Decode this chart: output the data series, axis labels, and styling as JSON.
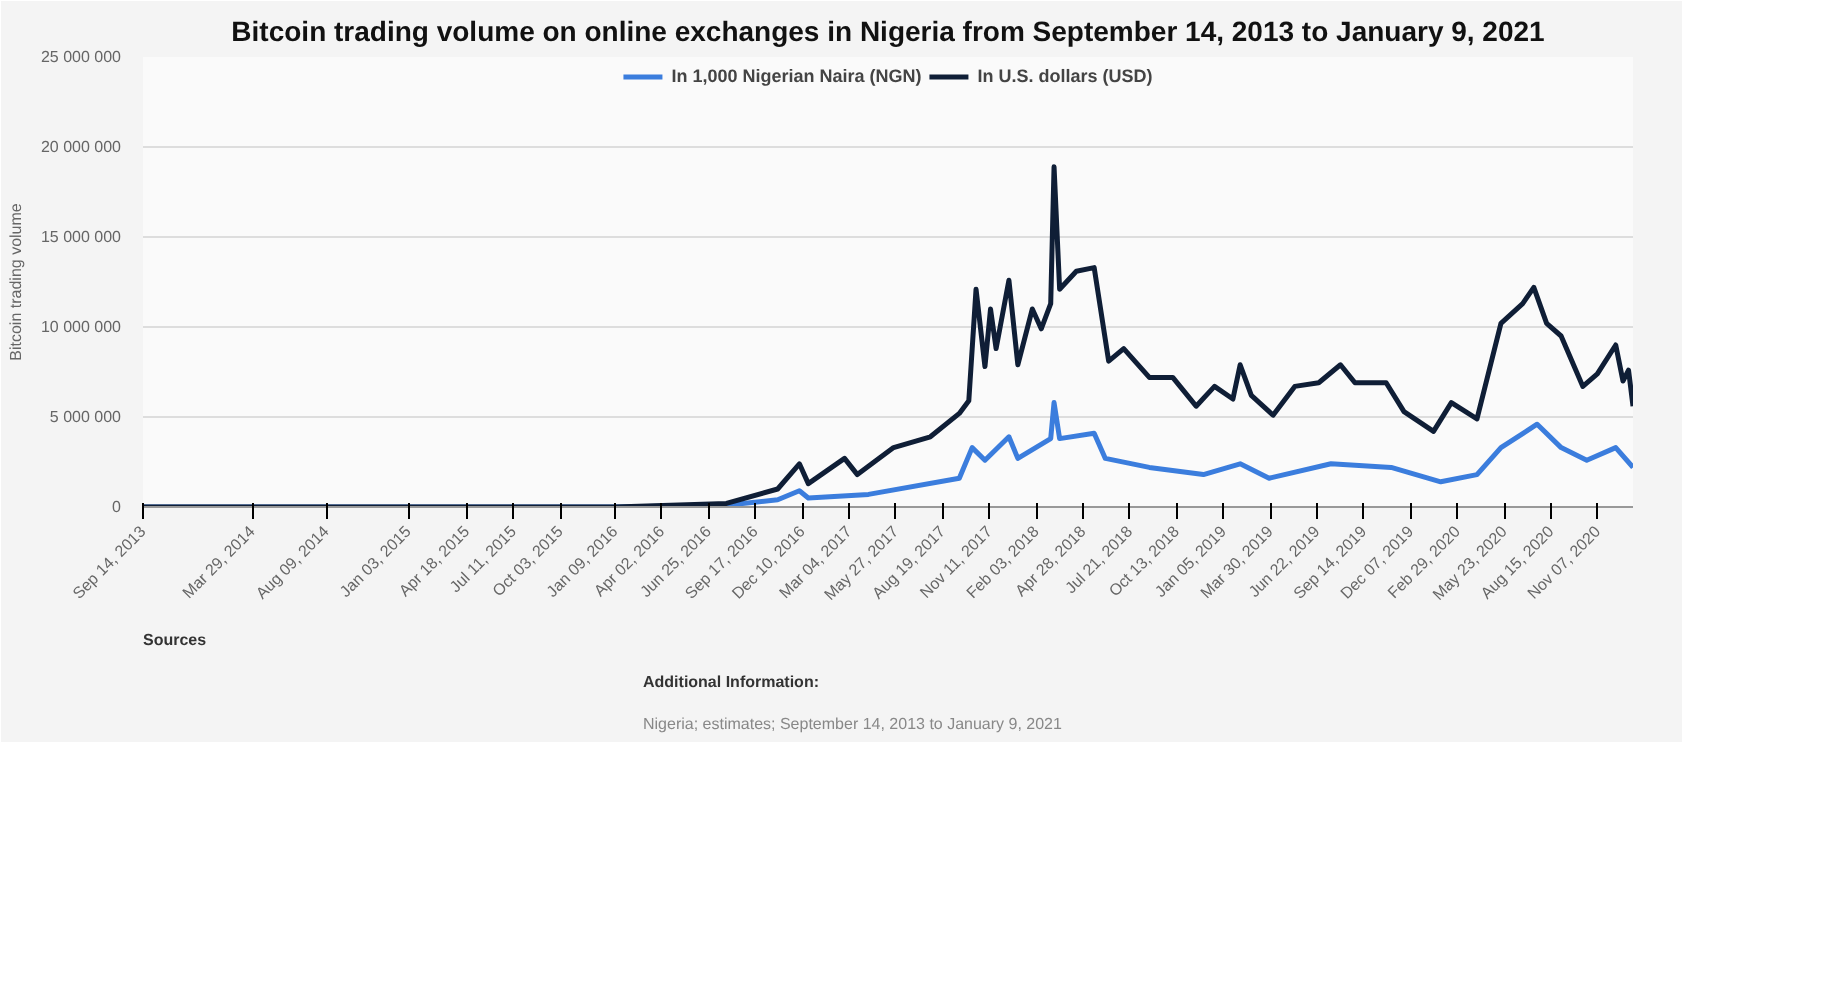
{
  "chart_data": {
    "type": "line",
    "title": "Bitcoin trading volume on online exchanges in Nigeria from September 14, 2013 to January 9, 2021",
    "ylabel": "Bitcoin trading volume",
    "xlim": [
      "2013-09-14",
      "2021-01-09"
    ],
    "xticks": [
      {
        "value": "2013-09-14",
        "label": "Sep 14, 2013"
      },
      {
        "value": "2014-03-29",
        "label": "Mar 29, 2014"
      },
      {
        "value": "2014-08-09",
        "label": "Aug 09, 2014"
      },
      {
        "value": "2015-01-03",
        "label": "Jan 03, 2015"
      },
      {
        "value": "2015-04-18",
        "label": "Apr 18, 2015"
      },
      {
        "value": "2015-07-11",
        "label": "Jul 11, 2015"
      },
      {
        "value": "2015-10-03",
        "label": "Oct 03, 2015"
      },
      {
        "value": "2016-01-09",
        "label": "Jan 09, 2016"
      },
      {
        "value": "2016-04-02",
        "label": "Apr 02, 2016"
      },
      {
        "value": "2016-06-25",
        "label": "Jun 25, 2016"
      },
      {
        "value": "2016-09-17",
        "label": "Sep 17, 2016"
      },
      {
        "value": "2016-12-10",
        "label": "Dec 10, 2016"
      },
      {
        "value": "2017-03-04",
        "label": "Mar 04, 2017"
      },
      {
        "value": "2017-05-27",
        "label": "May 27, 2017"
      },
      {
        "value": "2017-08-19",
        "label": "Aug 19, 2017"
      },
      {
        "value": "2017-11-11",
        "label": "Nov 11, 2017"
      },
      {
        "value": "2018-02-03",
        "label": "Feb 03, 2018"
      },
      {
        "value": "2018-04-28",
        "label": "Apr 28, 2018"
      },
      {
        "value": "2018-07-21",
        "label": "Jul 21, 2018"
      },
      {
        "value": "2018-10-13",
        "label": "Oct 13, 2018"
      },
      {
        "value": "2019-01-05",
        "label": "Jan 05, 2019"
      },
      {
        "value": "2019-03-30",
        "label": "Mar 30, 2019"
      },
      {
        "value": "2019-06-22",
        "label": "Jun 22, 2019"
      },
      {
        "value": "2019-09-14",
        "label": "Sep 14, 2019"
      },
      {
        "value": "2019-12-07",
        "label": "Dec 07, 2019"
      },
      {
        "value": "2020-02-29",
        "label": "Feb 29, 2020"
      },
      {
        "value": "2020-05-23",
        "label": "May 23, 2020"
      },
      {
        "value": "2020-08-15",
        "label": "Aug 15, 2020"
      },
      {
        "value": "2020-11-07",
        "label": "Nov 07, 2020"
      }
    ],
    "ylim": [
      0,
      25000000
    ],
    "yticks": [
      {
        "value": 0,
        "label": "0"
      },
      {
        "value": 5000000,
        "label": "5 000 000"
      },
      {
        "value": 10000000,
        "label": "10 000 000"
      },
      {
        "value": 15000000,
        "label": "15 000 000"
      },
      {
        "value": 20000000,
        "label": "20 000 000"
      },
      {
        "value": 25000000,
        "label": "25 000 000"
      }
    ],
    "grid": "y",
    "legend": "top",
    "marker": "none",
    "line_style": "solid",
    "series": [
      {
        "name": "In 1,000 Nigerian Naira (NGN)",
        "color": "#3b7ddd",
        "x": [
          "2013-09-14",
          "2016-01-09",
          "2016-07-27",
          "2016-10-27",
          "2016-12-05",
          "2016-12-21",
          "2017-04-08",
          "2017-09-18",
          "2017-10-11",
          "2017-11-03",
          "2017-12-16",
          "2018-01-01",
          "2018-03-01",
          "2018-03-07",
          "2018-03-17",
          "2018-05-18",
          "2018-06-07",
          "2018-08-25",
          "2018-11-30",
          "2019-02-04",
          "2019-03-28",
          "2019-07-17",
          "2019-11-02",
          "2020-01-30",
          "2020-04-04",
          "2020-05-17",
          "2020-07-21",
          "2020-09-02",
          "2020-10-18",
          "2020-12-09",
          "2021-01-09"
        ],
        "values": [
          0,
          0,
          100000,
          400000,
          900000,
          500000,
          700000,
          1600000,
          3300000,
          2600000,
          3900000,
          2700000,
          3800000,
          5800000,
          3800000,
          4100000,
          2700000,
          2200000,
          1800000,
          2400000,
          1600000,
          2400000,
          2200000,
          1400000,
          1800000,
          3300000,
          4600000,
          3300000,
          2600000,
          3300000,
          2200000
        ]
      },
      {
        "name": "In U.S. dollars (USD)",
        "color": "#0f1e36",
        "x": [
          "2013-09-14",
          "2016-01-09",
          "2016-07-27",
          "2016-10-27",
          "2016-12-05",
          "2016-12-21",
          "2017-02-24",
          "2017-03-19",
          "2017-05-23",
          "2017-07-28",
          "2017-09-18",
          "2017-10-05",
          "2017-10-18",
          "2017-11-03",
          "2017-11-13",
          "2017-11-23",
          "2017-12-16",
          "2018-01-01",
          "2018-01-27",
          "2018-02-12",
          "2018-03-01",
          "2018-03-07",
          "2018-03-17",
          "2018-04-16",
          "2018-05-18",
          "2018-06-13",
          "2018-07-10",
          "2018-08-25",
          "2018-10-06",
          "2018-11-17",
          "2018-12-20",
          "2019-01-22",
          "2019-02-04",
          "2019-02-24",
          "2019-04-04",
          "2019-05-13",
          "2019-06-25",
          "2019-08-03",
          "2019-08-29",
          "2019-10-24",
          "2019-11-25",
          "2020-01-17",
          "2020-02-18",
          "2020-04-04",
          "2020-05-17",
          "2020-06-25",
          "2020-07-15",
          "2020-08-07",
          "2020-09-02",
          "2020-10-11",
          "2020-11-06",
          "2020-12-09",
          "2020-12-22",
          "2021-01-01",
          "2021-01-09"
        ],
        "values": [
          0,
          0,
          200000,
          1000000,
          2400000,
          1300000,
          2700000,
          1800000,
          3300000,
          3900000,
          5200000,
          5900000,
          12100000,
          7800000,
          11000000,
          8800000,
          12600000,
          7900000,
          11000000,
          9900000,
          11300000,
          18900000,
          12100000,
          13100000,
          13300000,
          8100000,
          8800000,
          7200000,
          7200000,
          5600000,
          6700000,
          6000000,
          7900000,
          6200000,
          5100000,
          6700000,
          6900000,
          7900000,
          6900000,
          6900000,
          5300000,
          4200000,
          5800000,
          4900000,
          10200000,
          11300000,
          12200000,
          10200000,
          9500000,
          6700000,
          7400000,
          9000000,
          7000000,
          7600000,
          5600000
        ]
      }
    ],
    "annotations": [
      "Sources",
      "Additional Information:",
      "Nigeria; estimates; September 14, 2013 to January 9, 2021"
    ]
  }
}
